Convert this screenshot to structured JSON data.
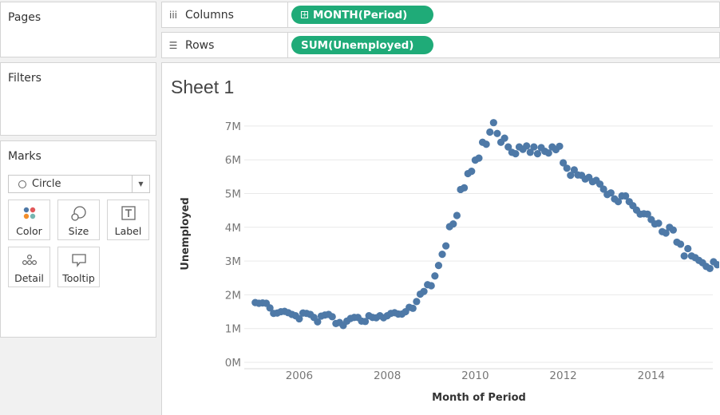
{
  "pages": {
    "title": "Pages"
  },
  "filters": {
    "title": "Filters"
  },
  "marks": {
    "title": "Marks",
    "type": "Circle",
    "buttons": {
      "color": "Color",
      "size": "Size",
      "label": "Label",
      "detail": "Detail",
      "tooltip": "Tooltip"
    }
  },
  "columns": {
    "label": "Columns",
    "pill": "MONTH(Period)"
  },
  "rows": {
    "label": "Rows",
    "pill": "SUM(Unemployed)"
  },
  "sheet": {
    "title": "Sheet 1"
  },
  "colors": {
    "pill": "#1fab78",
    "mark": "#4e79a7"
  },
  "chart_data": {
    "type": "scatter",
    "xlabel": "Month of Period",
    "ylabel": "Unemployed",
    "x_ticks": [
      "2006",
      "2008",
      "2010",
      "2012",
      "2014"
    ],
    "y_ticks": [
      "0M",
      "1M",
      "2M",
      "3M",
      "4M",
      "5M",
      "6M",
      "7M"
    ],
    "xlim": [
      2004.75,
      2015.4
    ],
    "ylim": [
      0,
      7400000
    ],
    "x_unit": "year",
    "grid": "horizontal",
    "series": [
      {
        "start": "2005-01",
        "frequency": "monthly",
        "values": [
          1770000,
          1750000,
          1760000,
          1750000,
          1610000,
          1450000,
          1460000,
          1500000,
          1510000,
          1470000,
          1420000,
          1380000,
          1290000,
          1460000,
          1450000,
          1420000,
          1330000,
          1200000,
          1370000,
          1400000,
          1420000,
          1350000,
          1150000,
          1180000,
          1090000,
          1220000,
          1300000,
          1330000,
          1330000,
          1220000,
          1210000,
          1380000,
          1330000,
          1320000,
          1380000,
          1320000,
          1380000,
          1450000,
          1470000,
          1430000,
          1430000,
          1500000,
          1630000,
          1600000,
          1800000,
          2020000,
          2100000,
          2300000,
          2270000,
          2560000,
          2870000,
          3200000,
          3450000,
          4020000,
          4100000,
          4350000,
          5120000,
          5170000,
          5590000,
          5660000,
          5990000,
          6050000,
          6520000,
          6460000,
          6820000,
          7100000,
          6780000,
          6520000,
          6640000,
          6380000,
          6220000,
          6180000,
          6380000,
          6310000,
          6410000,
          6220000,
          6380000,
          6180000,
          6360000,
          6250000,
          6200000,
          6380000,
          6300000,
          6400000,
          5910000,
          5750000,
          5540000,
          5700000,
          5550000,
          5540000,
          5430000,
          5480000,
          5350000,
          5390000,
          5280000,
          5130000,
          4970000,
          5020000,
          4840000,
          4760000,
          4930000,
          4930000,
          4760000,
          4640000,
          4510000,
          4390000,
          4400000,
          4390000,
          4230000,
          4100000,
          4120000,
          3870000,
          3830000,
          4000000,
          3920000,
          3560000,
          3500000,
          3150000,
          3370000,
          3150000,
          3100000,
          3020000,
          2950000,
          2840000,
          2780000,
          2980000,
          2890000
        ]
      }
    ]
  }
}
